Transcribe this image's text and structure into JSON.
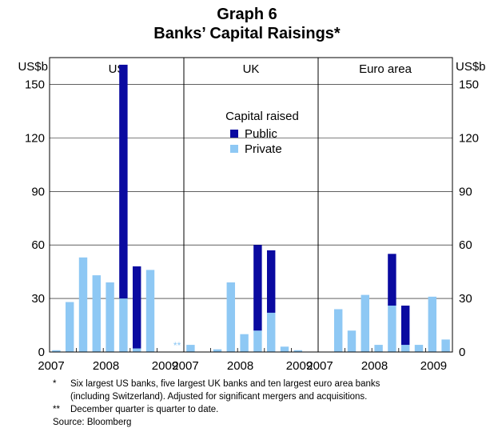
{
  "title": "Graph 6",
  "subtitle": "Banks’ Capital Raisings*",
  "chart_data": {
    "type": "bar",
    "stacked": true,
    "ylabel_left": "US$b",
    "ylabel_right": "US$b",
    "ylim": [
      0,
      165
    ],
    "yticks": [
      0,
      30,
      60,
      90,
      120,
      150
    ],
    "legend": {
      "title": "Capital raised",
      "placement": "top-center",
      "entries": [
        "Public",
        "Private"
      ]
    },
    "colors": {
      "Public": "#0a0aa0",
      "Private": "#8ec8f4"
    },
    "panels": [
      {
        "name": "US",
        "year_labels": [
          "2007",
          "2008",
          "2009"
        ],
        "private": [
          1,
          28,
          53,
          43,
          39,
          30,
          2,
          46,
          0,
          0
        ],
        "public": [
          0,
          0,
          0,
          0,
          0,
          131,
          46,
          0,
          0,
          0
        ],
        "annotation": {
          "text": "**",
          "index": 9
        }
      },
      {
        "name": "UK",
        "year_labels": [
          "2007",
          "2008",
          "2009"
        ],
        "private": [
          4,
          0,
          1.5,
          39,
          10,
          12,
          22,
          3,
          1,
          0
        ],
        "public": [
          0,
          0,
          0,
          0,
          0,
          48,
          35,
          0,
          0,
          0
        ]
      },
      {
        "name": "Euro area",
        "year_labels": [
          "2007",
          "2008",
          "2009"
        ],
        "private": [
          0,
          24,
          12,
          32,
          4,
          26,
          4,
          4,
          31,
          7
        ],
        "public": [
          0,
          0,
          0,
          0,
          0,
          29,
          22,
          0,
          0,
          0
        ],
        "annotation": {
          "text": "**",
          "index": 9
        }
      }
    ]
  },
  "footnotes": {
    "star_mark": "*",
    "star_line1": "Six largest US banks, five largest UK banks and ten largest euro area banks",
    "star_line2": "(including Switzerland). Adjusted for significant mergers and acquisitions.",
    "dstar_mark": "**",
    "dstar_text": "December quarter is quarter to date.",
    "source": "Source: Bloomberg"
  }
}
